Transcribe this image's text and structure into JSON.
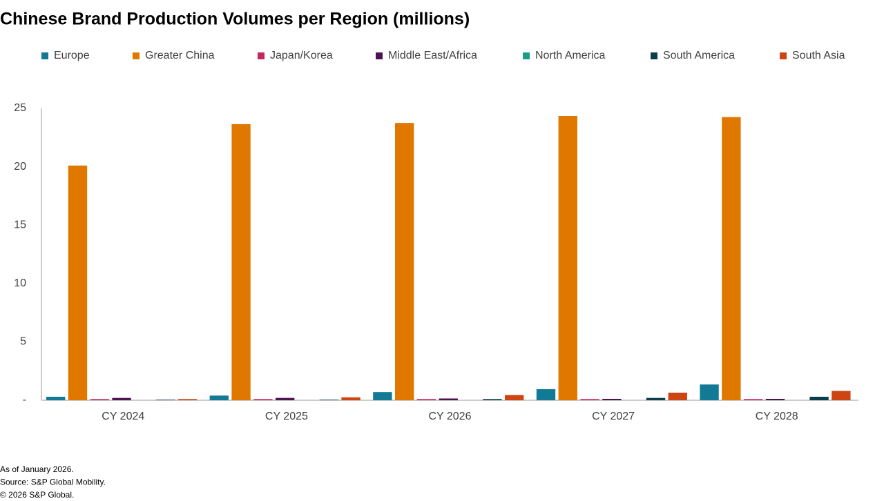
{
  "chart_data": {
    "type": "bar",
    "title": "Chinese Brand Production Volumes per Region (millions)",
    "categories": [
      "CY 2024",
      "CY 2025",
      "CY 2026",
      "CY 2027",
      "CY 2028"
    ],
    "series": [
      {
        "name": "Europe",
        "color": "#137a96",
        "values": [
          0.3,
          0.4,
          0.7,
          0.95,
          1.35
        ]
      },
      {
        "name": "Greater China",
        "color": "#e07800",
        "values": [
          20.1,
          23.65,
          23.75,
          24.35,
          24.25
        ]
      },
      {
        "name": "Japan/Korea",
        "color": "#c8245e",
        "values": [
          0.1,
          0.1,
          0.1,
          0.1,
          0.1
        ]
      },
      {
        "name": "Middle East/Africa",
        "color": "#4b1450",
        "values": [
          0.2,
          0.2,
          0.15,
          0.12,
          0.12
        ]
      },
      {
        "name": "North America",
        "color": "#1a9e86",
        "values": [
          0,
          0,
          0,
          0,
          0
        ]
      },
      {
        "name": "South America",
        "color": "#0b3d4a",
        "values": [
          0.05,
          0.05,
          0.1,
          0.2,
          0.3
        ]
      },
      {
        "name": "South Asia",
        "color": "#cc4512",
        "values": [
          0.1,
          0.25,
          0.45,
          0.65,
          0.8
        ]
      }
    ],
    "ylim": [
      0,
      25
    ],
    "yticks": [
      {
        "value": 0,
        "label": "-"
      },
      5,
      10,
      15,
      20,
      25
    ],
    "grid": false,
    "legend": "top",
    "notes": [
      "As of January 2026.",
      "Source: S&P Global Mobility.",
      "© 2026 S&P Global."
    ]
  }
}
